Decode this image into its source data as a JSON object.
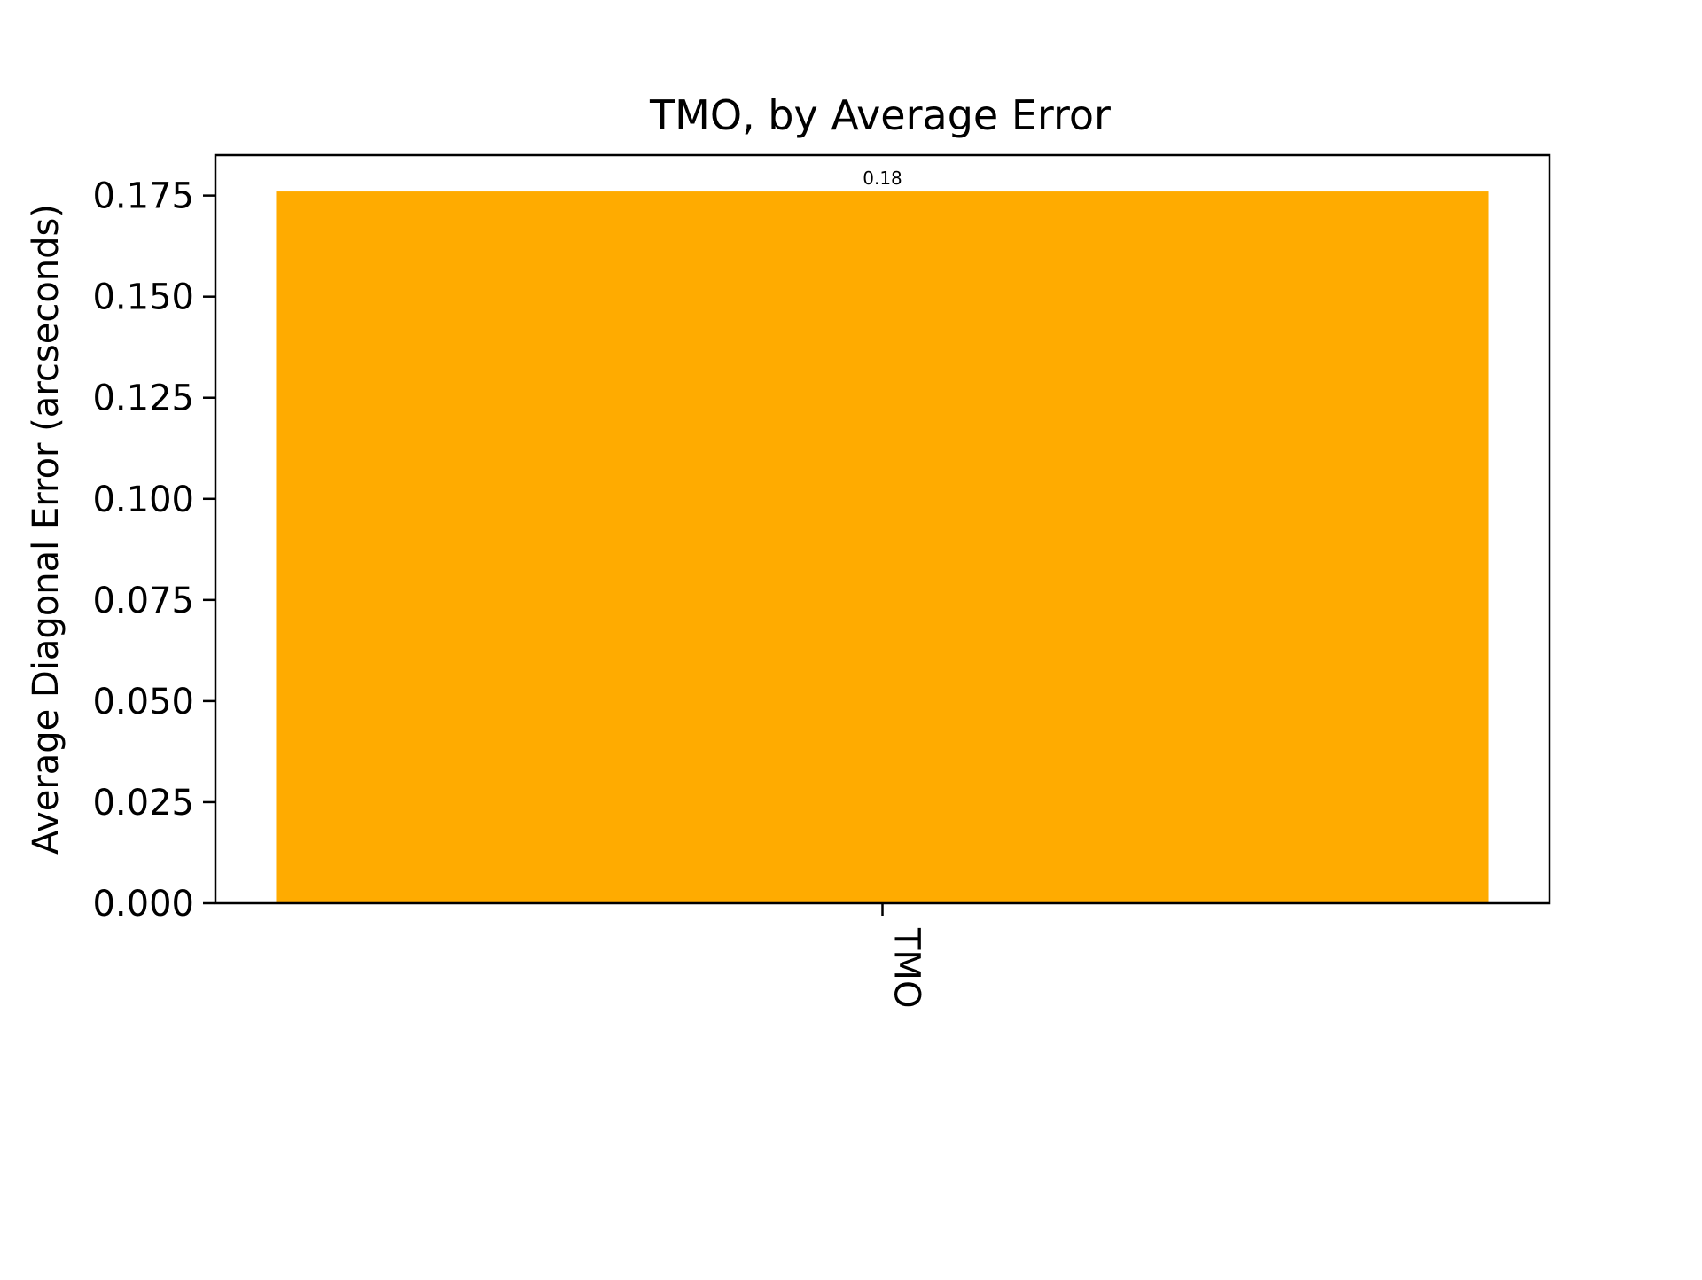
{
  "chart_data": {
    "type": "bar",
    "title": "TMO, by Average Error",
    "xlabel": "",
    "ylabel": "Average Diagonal Error (arcseconds)",
    "categories": [
      "TMO"
    ],
    "values": [
      0.176
    ],
    "data_labels": [
      "0.18"
    ],
    "ylim": [
      0,
      0.185
    ],
    "yticks": [
      0,
      0.025,
      0.05,
      0.075,
      0.1,
      0.125,
      0.15,
      0.175
    ],
    "ytick_labels": [
      "0.000",
      "0.025",
      "0.050",
      "0.075",
      "0.100",
      "0.125",
      "0.150",
      "0.175"
    ],
    "xtick_rotation": "vertical",
    "grid": false,
    "legend": "none",
    "bar_color": "#ffab00"
  }
}
